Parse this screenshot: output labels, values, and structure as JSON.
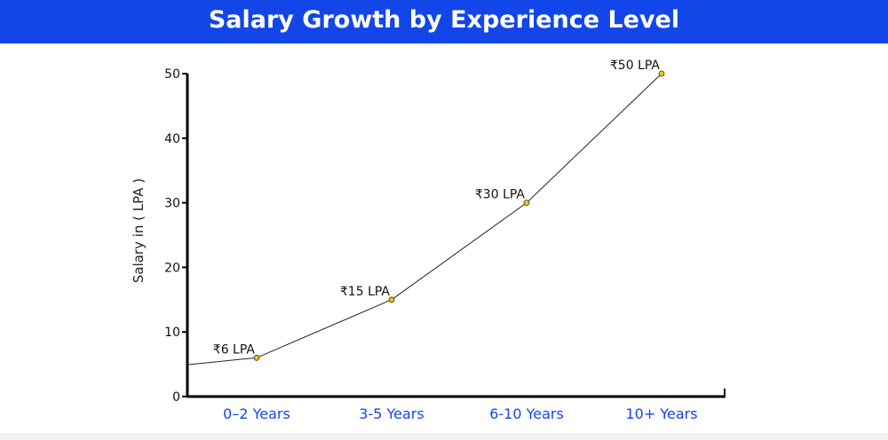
{
  "chart_data": {
    "type": "line",
    "title": "Salary Growth by Experience Level",
    "xlabel": "",
    "ylabel": "Salary in ( LPA )",
    "categories": [
      "0–2 Years",
      "3-5 Years",
      "6-10 Years",
      "10+ Years"
    ],
    "values": [
      6,
      15,
      30,
      50
    ],
    "data_labels": [
      "₹6 LPA",
      "₹15 LPA",
      "₹30 LPA",
      "₹50 LPA"
    ],
    "ylim": [
      0,
      50
    ],
    "yticks": [
      0,
      10,
      20,
      30,
      40,
      50
    ],
    "grid": false,
    "colors": {
      "line": "#222222",
      "marker": "#f5c400",
      "title_bg": "#1346e8",
      "xtick": "#1346e8"
    }
  }
}
